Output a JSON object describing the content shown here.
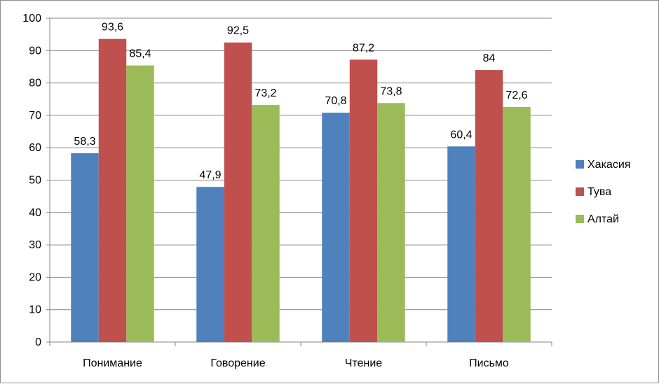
{
  "chart_data": {
    "type": "bar",
    "categories": [
      "Понимание",
      "Говорение",
      "Чтение",
      "Письмо"
    ],
    "series": [
      {
        "name": "Хакасия",
        "values": [
          58.3,
          47.9,
          70.8,
          60.4
        ],
        "labels": [
          "58,3",
          "47,9",
          "70,8",
          "60,4"
        ],
        "color": "#4f81bd"
      },
      {
        "name": "Тува",
        "values": [
          93.6,
          92.5,
          87.2,
          84
        ],
        "labels": [
          "93,6",
          "92,5",
          "87,2",
          "84"
        ],
        "color": "#c0504d"
      },
      {
        "name": "Алтай",
        "values": [
          85.4,
          73.2,
          73.8,
          72.6
        ],
        "labels": [
          "85,4",
          "73,2",
          "73,8",
          "72,6"
        ],
        "color": "#9bbb59"
      }
    ],
    "title": "",
    "xlabel": "",
    "ylabel": "",
    "ylim": [
      0,
      100
    ],
    "yticks": [
      0,
      10,
      20,
      30,
      40,
      50,
      60,
      70,
      80,
      90,
      100
    ],
    "grid": "horizontal",
    "legend_position": "right"
  }
}
